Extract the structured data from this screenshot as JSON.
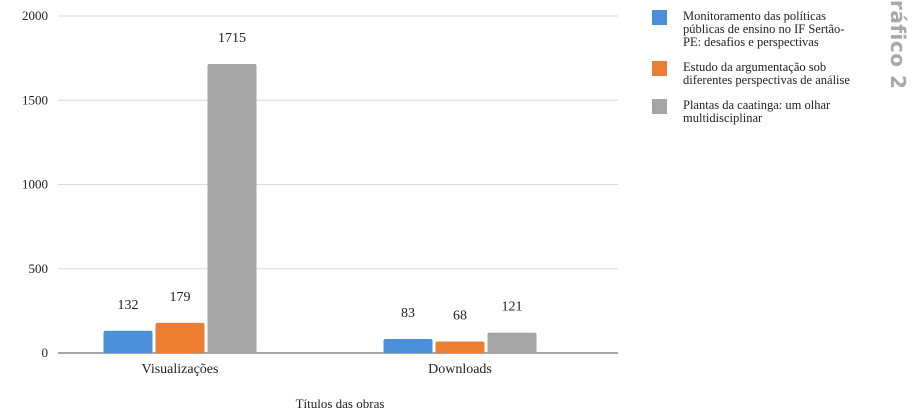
{
  "side_heading": "ráfico 2",
  "chart_data": {
    "type": "bar",
    "categories": [
      "Visualizações",
      "Downloads"
    ],
    "series": [
      {
        "name": "Monitoramento das políticas públicas de ensino no IF Sertão-PE: desafios e perspectivas",
        "values": [
          132,
          83
        ],
        "color": "#4a90d9"
      },
      {
        "name": "Estudo da argumentação sob diferentes perspectivas de análise",
        "values": [
          179,
          68
        ],
        "color": "#ed7d31"
      },
      {
        "name": "Plantas da caatinga: um olhar multidisciplinar",
        "values": [
          1715,
          121
        ],
        "color": "#a5a5a5"
      }
    ],
    "xlabel": "Títulos das obras",
    "ylabel": "",
    "ylim": [
      0,
      2000
    ],
    "yticks": [
      "0",
      "500",
      "1000",
      "1500",
      "2000"
    ],
    "grid": true,
    "legend": "right"
  }
}
